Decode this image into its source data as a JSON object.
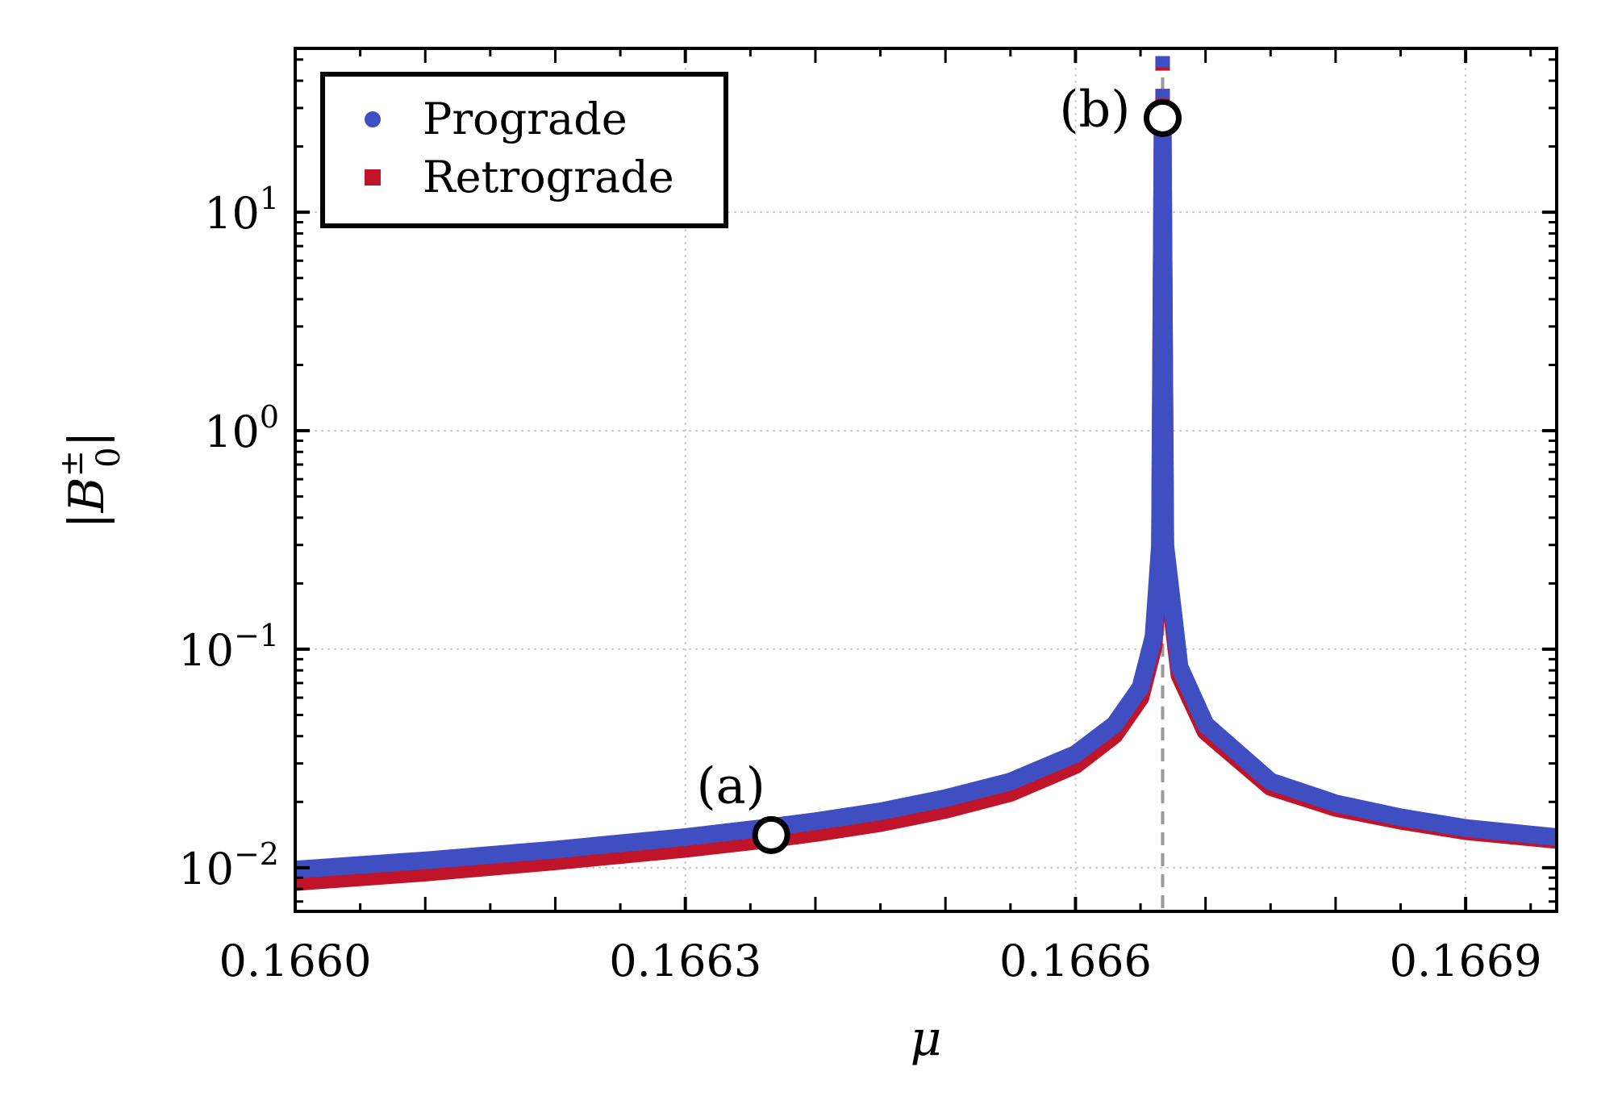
{
  "chart_data": {
    "type": "line",
    "title": "",
    "xlabel": "μ",
    "ylabel_base": "B",
    "ylabel_sub": "0",
    "ylabel_sup": "±",
    "xlim": [
      0.166,
      0.16697
    ],
    "ylim_log10": [
      -2.2,
      1.75
    ],
    "x_ticks": [
      {
        "value": 0.166,
        "label": "0.1660"
      },
      {
        "value": 0.1663,
        "label": "0.1663"
      },
      {
        "value": 0.1666,
        "label": "0.1666"
      },
      {
        "value": 0.1669,
        "label": "0.1669"
      }
    ],
    "y_ticks": [
      {
        "exponent": 1,
        "base": "10",
        "sup": "1"
      },
      {
        "exponent": 0,
        "base": "10",
        "sup": "0"
      },
      {
        "exponent": -1,
        "base": "10",
        "sup": "−1"
      },
      {
        "exponent": -2,
        "base": "10",
        "sup": "−2"
      }
    ],
    "grid": true,
    "legend_position": "top-left",
    "resonance_mu": 0.166667,
    "series": [
      {
        "name": "Prograde",
        "marker": "circle",
        "color": "#3f4ec1",
        "x": [
          0.166,
          0.1661,
          0.1662,
          0.1663,
          0.16636,
          0.1664,
          0.16645,
          0.1665,
          0.16655,
          0.1666,
          0.16663,
          0.16665,
          0.16666,
          0.166665,
          0.166667,
          0.166669,
          0.16668,
          0.1667,
          0.16675,
          0.1668,
          0.16685,
          0.1669,
          0.16697
        ],
        "values": [
          0.0098,
          0.0108,
          0.0121,
          0.0138,
          0.0152,
          0.0163,
          0.0181,
          0.0208,
          0.0248,
          0.0331,
          0.0452,
          0.0668,
          0.114,
          0.3,
          28.0,
          0.3,
          0.083,
          0.0452,
          0.0248,
          0.0197,
          0.017,
          0.0152,
          0.0138
        ]
      },
      {
        "name": "Retrograde",
        "marker": "square",
        "color": "#c0142b",
        "x": [
          0.166,
          0.1661,
          0.1662,
          0.1663,
          0.16636,
          0.1664,
          0.16645,
          0.1665,
          0.16655,
          0.1666,
          0.16663,
          0.16665,
          0.16666,
          0.166665,
          0.166667,
          0.166669,
          0.16668,
          0.1667,
          0.16675,
          0.1668,
          0.16685,
          0.1669,
          0.16697
        ],
        "values": [
          0.0086,
          0.0095,
          0.0107,
          0.0122,
          0.0134,
          0.0144,
          0.016,
          0.0184,
          0.022,
          0.0295,
          0.0405,
          0.06,
          0.103,
          0.27,
          26.0,
          0.27,
          0.076,
          0.042,
          0.0234,
          0.0188,
          0.0164,
          0.0147,
          0.0134
        ]
      }
    ],
    "annotations": [
      {
        "label": "(a)",
        "x": 0.166366,
        "value": 0.0141
      },
      {
        "label": "(b)",
        "x": 0.166667,
        "value": 27.0
      }
    ]
  }
}
